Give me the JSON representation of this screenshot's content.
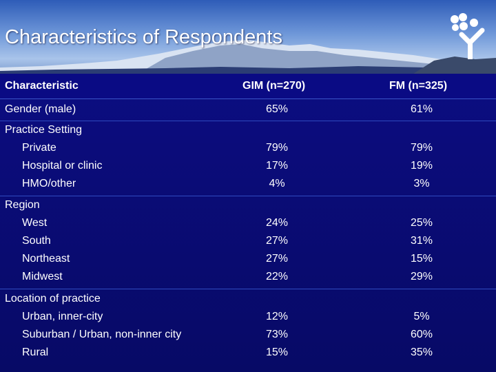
{
  "title": "Characteristics of Respondents",
  "header": {
    "col0": "Characteristic",
    "col1": "GIM (n=270)",
    "col2": "FM (n=325)"
  },
  "rows": {
    "gender": {
      "label": "Gender (male)",
      "gim": "65%",
      "fm": "61%"
    },
    "practice": {
      "label": "Practice Setting",
      "items": [
        {
          "label": "Private",
          "gim": "79%",
          "fm": "79%"
        },
        {
          "label": "Hospital or clinic",
          "gim": "17%",
          "fm": "19%"
        },
        {
          "label": "HMO/other",
          "gim": "4%",
          "fm": "3%"
        }
      ]
    },
    "region": {
      "label": "Region",
      "items": [
        {
          "label": "West",
          "gim": "24%",
          "fm": "25%"
        },
        {
          "label": "South",
          "gim": "27%",
          "fm": "31%"
        },
        {
          "label": "Northeast",
          "gim": "27%",
          "fm": "15%"
        },
        {
          "label": "Midwest",
          "gim": "22%",
          "fm": "29%"
        }
      ]
    },
    "location": {
      "label": "Location of practice",
      "items": [
        {
          "label": "Urban, inner-city",
          "gim": "12%",
          "fm": "5%"
        },
        {
          "label": "Suburban / Urban, non-inner city",
          "gim": "73%",
          "fm": "60%"
        },
        {
          "label": "Rural",
          "gim": "15%",
          "fm": "35%"
        }
      ]
    }
  }
}
